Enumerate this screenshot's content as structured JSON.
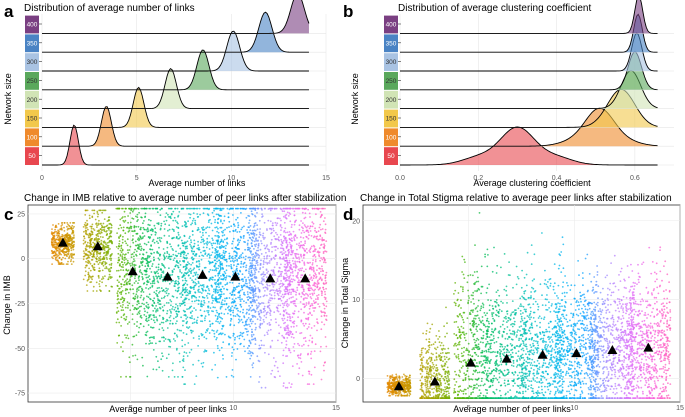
{
  "panel_letters": {
    "a": "a",
    "b": "b",
    "c": "c",
    "d": "d"
  },
  "size_colors": [
    "#e8474f",
    "#ef8a2c",
    "#f2c84b",
    "#d1e4b5",
    "#5aa85c",
    "#a9c3e3",
    "#4a83c4",
    "#7a3f82"
  ],
  "strip_colors": [
    "#f8766d",
    "#e38900",
    "#c49a00",
    "#99a800",
    "#53b400",
    "#00bc56",
    "#00c094",
    "#00bfc4",
    "#00b6eb",
    "#06a4ff",
    "#a58aff",
    "#df70f8",
    "#fb61d7",
    "#ff66a8"
  ],
  "chart_data": [
    {
      "id": "a",
      "type": "area",
      "subtype": "ridgeline",
      "title": "Distribution of average number of links",
      "xlabel": "Average number of links",
      "ylabel": "Network size",
      "xlim": [
        0,
        15
      ],
      "x_ticks": [
        "0",
        "5",
        "10",
        "15"
      ],
      "x_tick_values": [
        0,
        5,
        10,
        15
      ],
      "categories": [
        "50",
        "100",
        "150",
        "200",
        "250",
        "300",
        "350",
        "400"
      ],
      "series": [
        {
          "name": "50",
          "mean": 1.7,
          "sd": 0.22
        },
        {
          "name": "100",
          "mean": 3.4,
          "sd": 0.26
        },
        {
          "name": "150",
          "mean": 5.1,
          "sd": 0.28
        },
        {
          "name": "200",
          "mean": 6.8,
          "sd": 0.3
        },
        {
          "name": "250",
          "mean": 8.5,
          "sd": 0.32
        },
        {
          "name": "300",
          "mean": 10.1,
          "sd": 0.34
        },
        {
          "name": "350",
          "mean": 11.8,
          "sd": 0.35
        },
        {
          "name": "400",
          "mean": 13.5,
          "sd": 0.36
        }
      ],
      "grid": true
    },
    {
      "id": "b",
      "type": "area",
      "subtype": "ridgeline",
      "title": "Distribution of average clustering coefficient",
      "xlabel": "Average clustering coefficient",
      "ylabel": "Network size",
      "xlim": [
        0,
        0.7
      ],
      "x_ticks": [
        "0.0",
        "0.2",
        "0.4",
        "0.6"
      ],
      "x_tick_values": [
        0,
        0.2,
        0.4,
        0.6
      ],
      "categories": [
        "50",
        "100",
        "150",
        "200",
        "250",
        "300",
        "350",
        "400"
      ],
      "series": [
        {
          "name": "50",
          "mean": 0.3,
          "sd": 0.07
        },
        {
          "name": "100",
          "mean": 0.51,
          "sd": 0.05
        },
        {
          "name": "150",
          "mean": 0.565,
          "sd": 0.035
        },
        {
          "name": "200",
          "mean": 0.59,
          "sd": 0.025
        },
        {
          "name": "250",
          "mean": 0.6,
          "sd": 0.017
        },
        {
          "name": "300",
          "mean": 0.605,
          "sd": 0.013
        },
        {
          "name": "350",
          "mean": 0.608,
          "sd": 0.011
        },
        {
          "name": "400",
          "mean": 0.61,
          "sd": 0.01
        }
      ],
      "grid": true
    },
    {
      "id": "c",
      "type": "scatter",
      "subtype": "jitter-strip",
      "title": "Change in IMB relative to average number of peer links after stabilization",
      "xlabel": "Average number of peer links",
      "ylabel": "Change in IMB",
      "xlim": [
        0,
        15
      ],
      "ylim": [
        -80,
        30
      ],
      "x_ticks": [
        "5",
        "10",
        "15"
      ],
      "x_tick_values": [
        5,
        10,
        15
      ],
      "y_ticks": [
        "25",
        "0",
        "-25",
        "-50",
        "-75"
      ],
      "y_tick_values": [
        25,
        0,
        -25,
        -50,
        -75
      ],
      "groups": [
        {
          "x": 1.7,
          "mean": 9,
          "y_min": -3,
          "y_max": 20,
          "width": 0.55
        },
        {
          "x": 3.4,
          "mean": 7,
          "y_min": -18,
          "y_max": 27,
          "width": 0.7
        },
        {
          "x": 5.1,
          "mean": -7,
          "y_min": -66,
          "y_max": 28,
          "width": 0.8
        },
        {
          "x": 6.8,
          "mean": -10,
          "y_min": -66,
          "y_max": 28,
          "width": 0.95
        },
        {
          "x": 8.5,
          "mean": -9,
          "y_min": -70,
          "y_max": 28,
          "width": 1.0
        },
        {
          "x": 10.1,
          "mean": -10,
          "y_min": -66,
          "y_max": 28,
          "width": 1.0
        },
        {
          "x": 11.8,
          "mean": -11,
          "y_min": -72,
          "y_max": 28,
          "width": 1.05
        },
        {
          "x": 13.5,
          "mean": -11,
          "y_min": -70,
          "y_max": 28,
          "width": 1.05
        }
      ],
      "grid": true
    },
    {
      "id": "d",
      "type": "scatter",
      "subtype": "jitter-strip",
      "title": "Change in Total Stigma relative to average peer links after stabilization",
      "xlabel": "Average number of peer links",
      "ylabel": "Change in Total Sigma",
      "xlim": [
        0,
        15
      ],
      "ylim": [
        -3,
        22
      ],
      "x_ticks": [
        "5",
        "10",
        "15"
      ],
      "x_tick_values": [
        5,
        10,
        15
      ],
      "y_ticks": [
        "20",
        "10",
        "0"
      ],
      "y_tick_values": [
        20,
        10,
        0
      ],
      "groups": [
        {
          "x": 1.7,
          "mean": -1,
          "y_min": -2.2,
          "y_max": 0.5,
          "width": 0.55
        },
        {
          "x": 3.4,
          "mean": -0.4,
          "y_min": -2.5,
          "y_max": 9,
          "width": 0.7
        },
        {
          "x": 5.1,
          "mean": 2,
          "y_min": -2.5,
          "y_max": 21,
          "width": 0.8
        },
        {
          "x": 6.8,
          "mean": 2.5,
          "y_min": -2.5,
          "y_max": 19,
          "width": 0.95
        },
        {
          "x": 8.5,
          "mean": 3,
          "y_min": -2.5,
          "y_max": 19,
          "width": 1.0
        },
        {
          "x": 10.1,
          "mean": 3.2,
          "y_min": -2.5,
          "y_max": 17,
          "width": 1.0
        },
        {
          "x": 11.8,
          "mean": 3.6,
          "y_min": -2.5,
          "y_max": 17,
          "width": 1.05
        },
        {
          "x": 13.5,
          "mean": 3.9,
          "y_min": -2.5,
          "y_max": 17,
          "width": 1.05
        }
      ],
      "grid": true
    }
  ]
}
